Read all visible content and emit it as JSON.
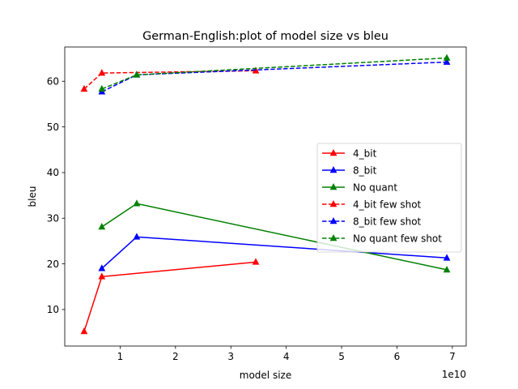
{
  "chart_data": {
    "type": "line",
    "title": "German-English:plot of model size vs bleu",
    "xlabel": "model size",
    "ylabel": "bleu",
    "x_offset_label": "1e10",
    "xlim": [
      0.0,
      7.25
    ],
    "ylim": [
      2.0,
      67.5
    ],
    "x_ticks": [
      1,
      2,
      3,
      4,
      5,
      6,
      7
    ],
    "y_ticks": [
      10,
      20,
      30,
      40,
      50,
      60
    ],
    "x_unit_scale": "1e10",
    "grid": false,
    "legend_position": "center-right",
    "series": [
      {
        "name": "4_bit",
        "color": "#ff0000",
        "style": "solid",
        "marker": "triangle",
        "x": [
          0.35,
          0.67,
          3.45
        ],
        "y": [
          5.2,
          17.2,
          20.4
        ]
      },
      {
        "name": "8_bit",
        "color": "#0000ff",
        "style": "solid",
        "marker": "triangle",
        "x": [
          0.67,
          1.3,
          6.9
        ],
        "y": [
          19.0,
          25.9,
          21.3
        ]
      },
      {
        "name": "No quant",
        "color": "#008000",
        "style": "solid",
        "marker": "triangle",
        "x": [
          0.67,
          1.3,
          6.9
        ],
        "y": [
          28.1,
          33.2,
          18.7
        ]
      },
      {
        "name": "4_bit few shot",
        "color": "#ff0000",
        "style": "dashed",
        "marker": "triangle",
        "x": [
          0.35,
          0.67,
          3.45
        ],
        "y": [
          58.3,
          61.8,
          62.3
        ]
      },
      {
        "name": "8_bit few shot",
        "color": "#0000ff",
        "style": "dashed",
        "marker": "triangle",
        "x": [
          0.67,
          1.3,
          6.9
        ],
        "y": [
          57.7,
          61.4,
          64.2
        ]
      },
      {
        "name": "No quant few shot",
        "color": "#008000",
        "style": "dashed",
        "marker": "triangle",
        "x": [
          0.67,
          1.3,
          6.9
        ],
        "y": [
          58.3,
          61.4,
          65.1
        ]
      }
    ]
  }
}
